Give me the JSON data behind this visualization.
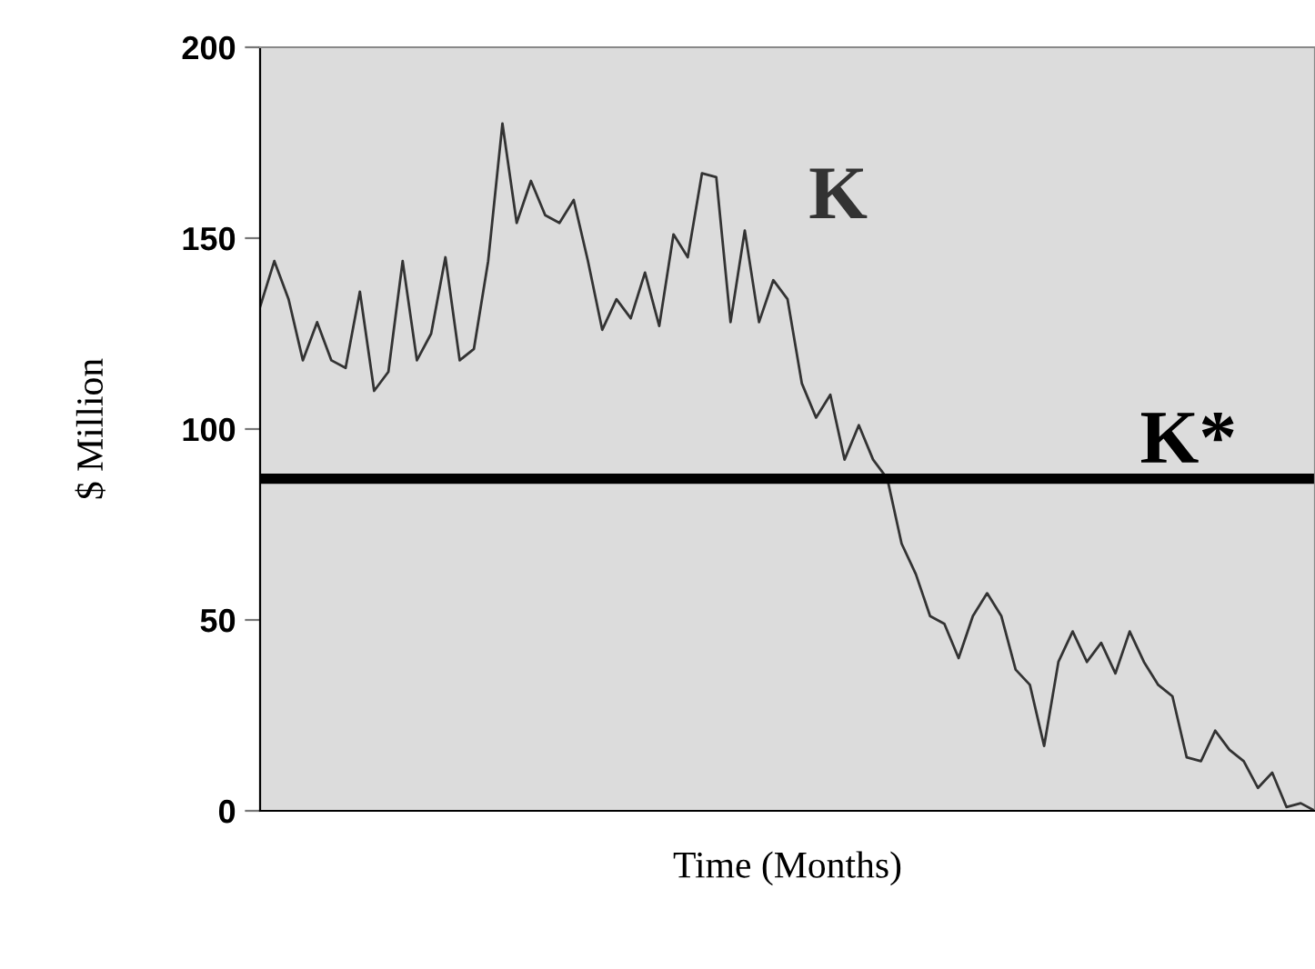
{
  "chart_data": {
    "type": "line",
    "xlabel": "Time (Months)",
    "ylabel": "$ Million",
    "categories": [
      null,
      null,
      null,
      null,
      null,
      null,
      null,
      null,
      null,
      null,
      null,
      null,
      null,
      null,
      null,
      null,
      null,
      null,
      null,
      null,
      null,
      null,
      null,
      null,
      null,
      null,
      null,
      null,
      null,
      null,
      null,
      null,
      null,
      null,
      null,
      null,
      null,
      null,
      null,
      null,
      null,
      null,
      null,
      null,
      null,
      null,
      null,
      null,
      null,
      null,
      null,
      null,
      null,
      null,
      null,
      null,
      null,
      null,
      null,
      null,
      null,
      null,
      null,
      null,
      null,
      null,
      null,
      null,
      null,
      null,
      null,
      null,
      null,
      null,
      null
    ],
    "series": [
      {
        "name": "K",
        "color": "#333333",
        "values": [
          132,
          144,
          134,
          118,
          128,
          118,
          116,
          136,
          110,
          115,
          144,
          118,
          125,
          145,
          118,
          121,
          144,
          180,
          154,
          165,
          156,
          154,
          160,
          144,
          126,
          134,
          129,
          141,
          127,
          151,
          145,
          167,
          166,
          128,
          152,
          128,
          139,
          134,
          112,
          103,
          109,
          92,
          101,
          92,
          87,
          70,
          62,
          51,
          49,
          40,
          51,
          57,
          51,
          37,
          33,
          17,
          39,
          47,
          39,
          44,
          36,
          47,
          39,
          33,
          30,
          14,
          13,
          21,
          16,
          13,
          6,
          10,
          1,
          2,
          0
        ]
      }
    ],
    "ylim": [
      0,
      200
    ],
    "yticks": [
      0,
      50,
      100,
      150,
      200
    ],
    "ref_lines": [
      {
        "axis": "y",
        "value": 87,
        "label": "K*",
        "color": "#000000",
        "line_style": "solid"
      }
    ],
    "tick_labels": "y",
    "grid": false,
    "legend": false,
    "marker": "none",
    "line_style": "solid"
  }
}
